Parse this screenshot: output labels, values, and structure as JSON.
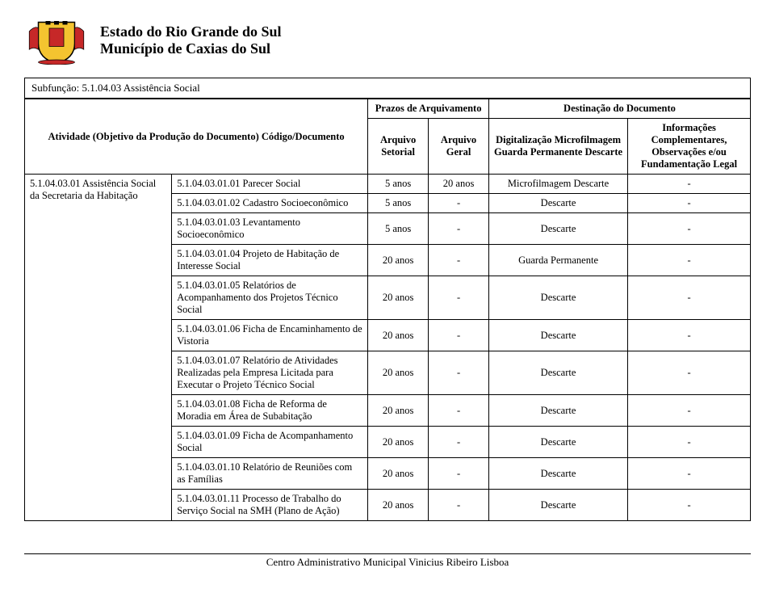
{
  "colors": {
    "page_bg": "#ffffff",
    "text": "#000000",
    "border": "#000000",
    "coat_yellow": "#f4c430",
    "coat_red": "#c62828",
    "coat_black": "#000000"
  },
  "header": {
    "line1": "Estado do Rio Grande do Sul",
    "line2": "Município de Caxias do Sul"
  },
  "subfunction": "Subfunção: 5.1.04.03 Assistência Social",
  "table": {
    "header_row1": {
      "activity_label": "Atividade (Objetivo da Produção do Documento) Código/Documento",
      "prazos_label": "Prazos de Arquivamento",
      "destinacao_label": "Destinação do Documento"
    },
    "header_row2": {
      "setorial": "Arquivo Setorial",
      "geral": "Arquivo Geral",
      "dest": "Digitalização Microfilmagem Guarda Permanente Descarte",
      "info": "Informações Complementares, Observações e/ou Fundamentação Legal"
    },
    "activity_group_label": "5.1.04.03.01 Assistência Social da Secretaria da Habitação",
    "rows": [
      {
        "doc": "5.1.04.03.01.01 Parecer Social",
        "setorial": "5 anos",
        "geral": "20 anos",
        "dest": "Microfilmagem Descarte",
        "info": "-"
      },
      {
        "doc": "5.1.04.03.01.02 Cadastro Socioeconômico",
        "setorial": "5 anos",
        "geral": "-",
        "dest": "Descarte",
        "info": "-"
      },
      {
        "doc": "5.1.04.03.01.03 Levantamento Socioeconômico",
        "setorial": "5 anos",
        "geral": "-",
        "dest": "Descarte",
        "info": "-"
      },
      {
        "doc": "5.1.04.03.01.04 Projeto de Habitação de Interesse Social",
        "setorial": "20 anos",
        "geral": "-",
        "dest": "Guarda Permanente",
        "info": "-"
      },
      {
        "doc": "5.1.04.03.01.05 Relatórios de Acompanhamento dos Projetos Técnico Social",
        "setorial": "20 anos",
        "geral": "-",
        "dest": "Descarte",
        "info": "-"
      },
      {
        "doc": "5.1.04.03.01.06 Ficha de Encaminhamento de Vistoria",
        "setorial": "20 anos",
        "geral": "-",
        "dest": "Descarte",
        "info": "-"
      },
      {
        "doc": "5.1.04.03.01.07 Relatório de Atividades Realizadas pela Empresa Licitada para Executar o Projeto Técnico Social",
        "setorial": "20 anos",
        "geral": "-",
        "dest": "Descarte",
        "info": "-"
      },
      {
        "doc": "5.1.04.03.01.08 Ficha de Reforma de Moradia em Área de Subabitação",
        "setorial": "20 anos",
        "geral": "-",
        "dest": "Descarte",
        "info": "-"
      },
      {
        "doc": "5.1.04.03.01.09 Ficha de Acompanhamento Social",
        "setorial": "20 anos",
        "geral": "-",
        "dest": "Descarte",
        "info": "-"
      },
      {
        "doc": "5.1.04.03.01.10 Relatório de Reuniões com as Famílias",
        "setorial": "20 anos",
        "geral": "-",
        "dest": "Descarte",
        "info": "-"
      },
      {
        "doc": "5.1.04.03.01.11 Processo de Trabalho do Serviço Social na SMH (Plano de Ação)",
        "setorial": "20 anos",
        "geral": "-",
        "dest": "Descarte",
        "info": "-"
      }
    ]
  },
  "footer": "Centro Administrativo Municipal Vinicius Ribeiro Lisboa"
}
